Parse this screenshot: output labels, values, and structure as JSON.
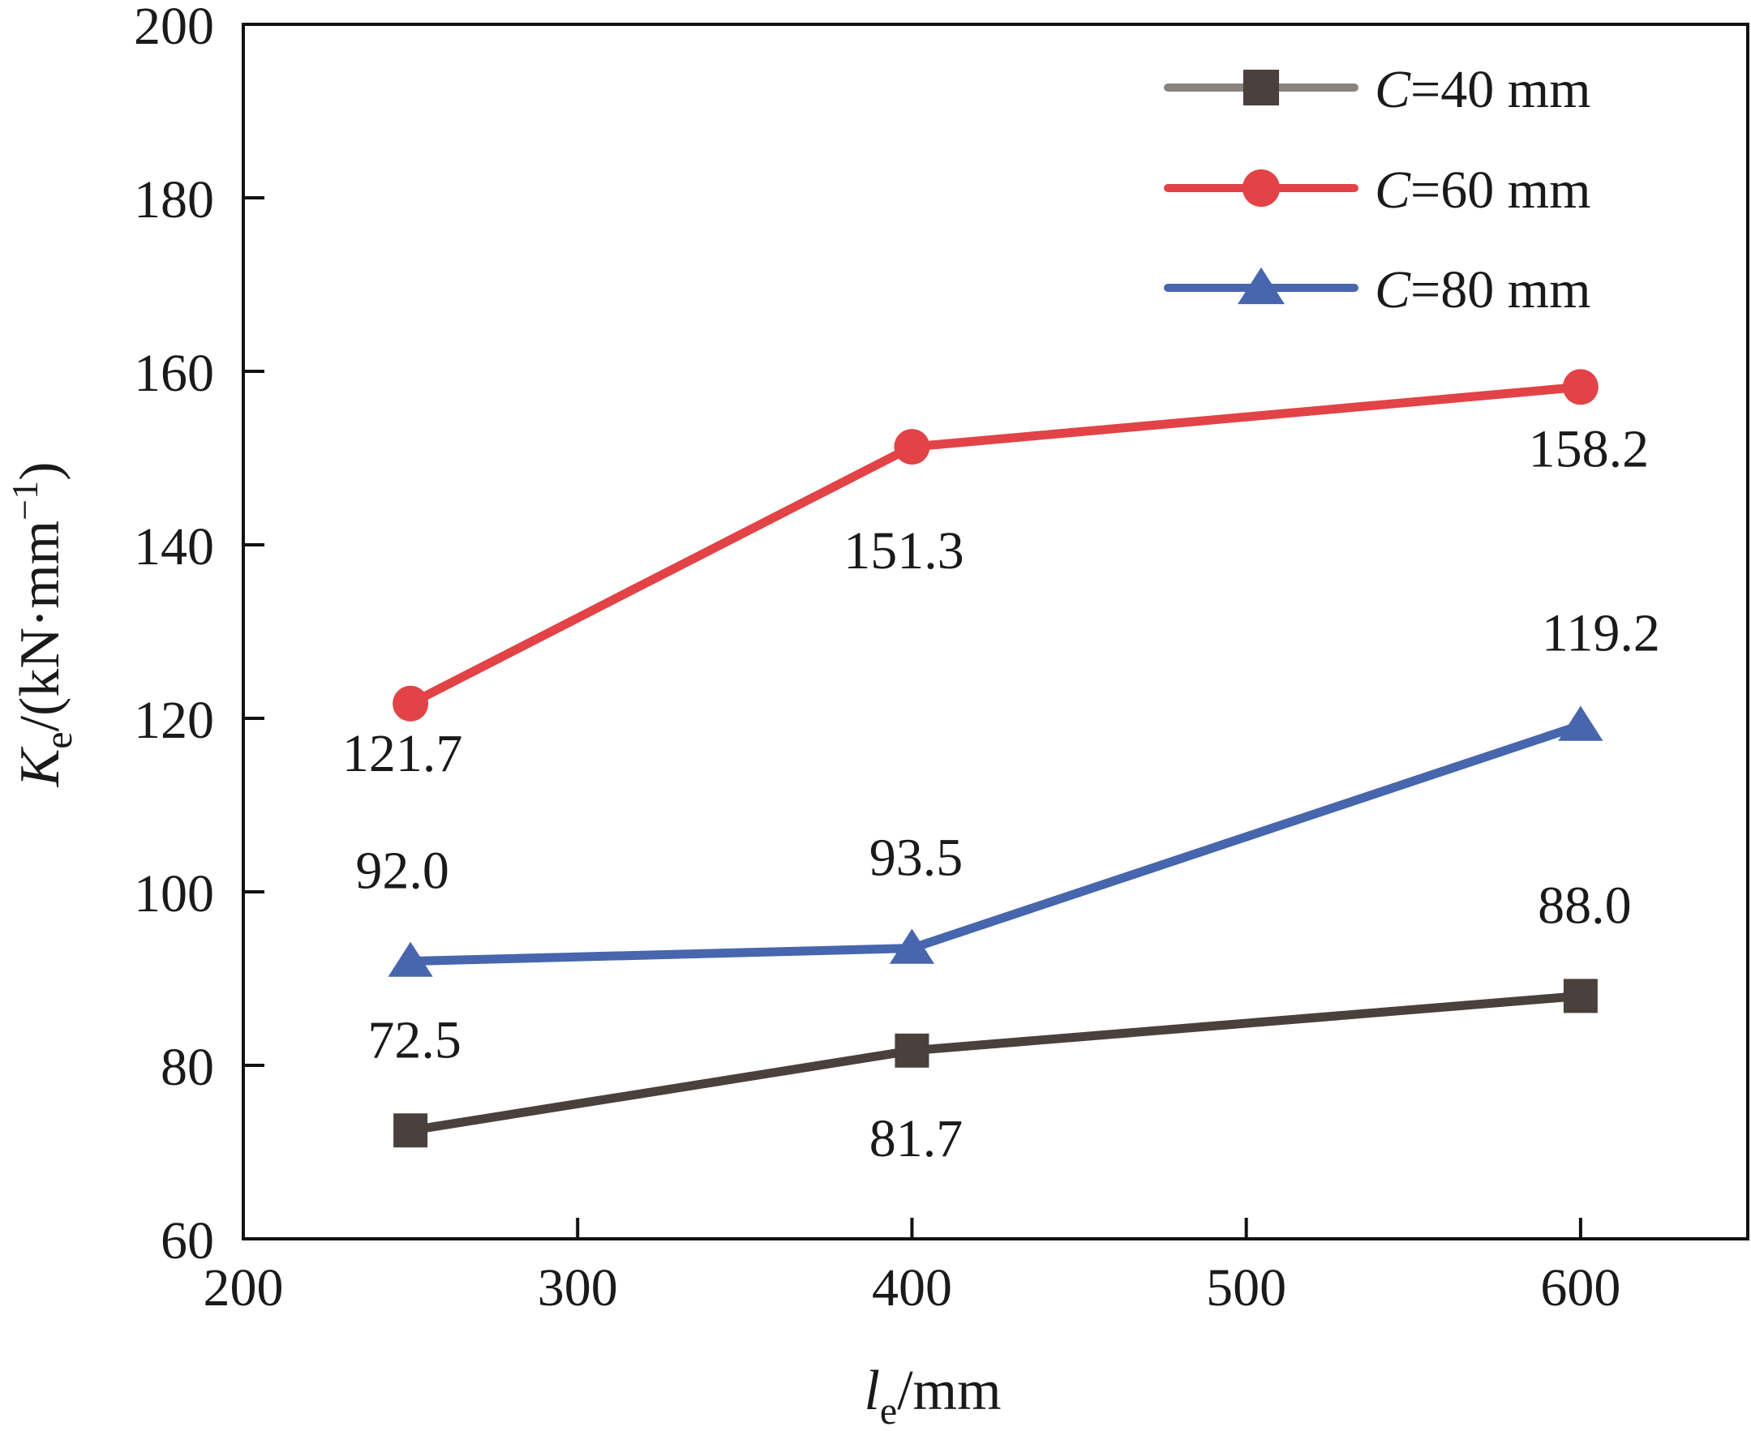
{
  "chart_data": {
    "type": "line",
    "x": [
      250,
      400,
      600
    ],
    "xlim": [
      200,
      650
    ],
    "ylim": [
      60,
      200
    ],
    "xticks": [
      "200",
      "300",
      "400",
      "500",
      "600"
    ],
    "yticks": [
      "60",
      "80",
      "100",
      "120",
      "140",
      "160",
      "180",
      "200"
    ],
    "xlabel": {
      "base": "l",
      "sub": "e",
      "unit": "/mm"
    },
    "ylabel": {
      "base": "K",
      "sub": "e",
      "unit": "/(kN·mm",
      "exp": "−1",
      "close": ")"
    },
    "grid": false,
    "legend_position": "top-right",
    "series": [
      {
        "name": "C=40 mm",
        "name_var": "C",
        "name_rest": "=40 mm",
        "marker": "square",
        "color": "#4a403c",
        "legend_line_color": "#8a8380",
        "values": [
          72.5,
          81.7,
          88.0
        ],
        "labels": [
          "72.5",
          "81.7",
          "88.0"
        ]
      },
      {
        "name": "C=60 mm",
        "name_var": "C",
        "name_rest": "=60 mm",
        "marker": "circle",
        "color": "#e24346",
        "legend_line_color": "#e24346",
        "values": [
          121.7,
          151.3,
          158.2
        ],
        "labels": [
          "121.7",
          "151.3",
          "158.2"
        ]
      },
      {
        "name": "C=80 mm",
        "name_var": "C",
        "name_rest": "=80 mm",
        "marker": "triangle",
        "color": "#4766ae",
        "legend_line_color": "#4766ae",
        "values": [
          92.0,
          93.5,
          119.2
        ],
        "labels": [
          "92.0",
          "93.5",
          "119.2"
        ]
      }
    ]
  }
}
